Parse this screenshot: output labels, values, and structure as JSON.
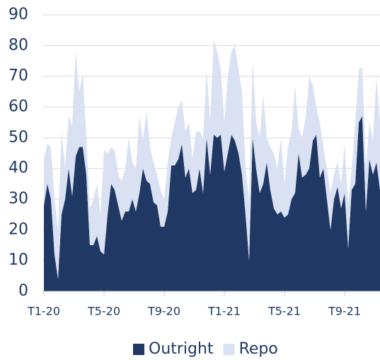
{
  "chart_data": {
    "type": "stacked_area",
    "categories": [
      "T1-20",
      null,
      null,
      null,
      null,
      null,
      null,
      null,
      null,
      null,
      null,
      null,
      null,
      null,
      null,
      null,
      null,
      "T5-20",
      null,
      null,
      null,
      null,
      null,
      null,
      null,
      null,
      null,
      null,
      null,
      null,
      null,
      null,
      null,
      null,
      "T9-20",
      null,
      null,
      null,
      null,
      null,
      null,
      null,
      null,
      null,
      null,
      null,
      null,
      null,
      null,
      null,
      null,
      "T1-21",
      null,
      null,
      null,
      null,
      null,
      null,
      null,
      null,
      null,
      null,
      null,
      null,
      null,
      null,
      null,
      null,
      "T5-21",
      null,
      null,
      null,
      null,
      null,
      null,
      null,
      null,
      null,
      null,
      null,
      null,
      null,
      null,
      null,
      null,
      "T9-21",
      null,
      null,
      null,
      null,
      null,
      null,
      null,
      null,
      null,
      null
    ],
    "series": [
      {
        "name": "Outright",
        "color": "#203864",
        "values": [
          28,
          35,
          30,
          12,
          4,
          25,
          30,
          40,
          31,
          44,
          47,
          47,
          38,
          15,
          15,
          18,
          13,
          12,
          25,
          35,
          33,
          28,
          23,
          26,
          26,
          30,
          26,
          32,
          40,
          36,
          35,
          29,
          28,
          21,
          21,
          26,
          41,
          41,
          43,
          48,
          37,
          40,
          32,
          33,
          40,
          32,
          50,
          38,
          51,
          50,
          51,
          39,
          45,
          51,
          49,
          45,
          38,
          25,
          10,
          50,
          40,
          32,
          35,
          42,
          33,
          27,
          25,
          26,
          24,
          25,
          30,
          32,
          45,
          37,
          38,
          40,
          49,
          51,
          37,
          40,
          30,
          20,
          30,
          34,
          27,
          32,
          14,
          33,
          35,
          55,
          57,
          26,
          43,
          38,
          42,
          33
        ]
      },
      {
        "name": "Repo",
        "color": "#d9e1f2",
        "values": [
          15,
          13,
          17,
          18,
          16,
          27,
          10,
          17,
          23,
          34,
          18,
          24,
          12,
          12,
          15,
          17,
          12,
          34,
          20,
          12,
          13,
          10,
          13,
          14,
          24,
          12,
          14,
          25,
          9,
          23,
          12,
          13,
          10,
          12,
          9,
          16,
          9,
          14,
          17,
          14,
          15,
          15,
          11,
          19,
          12,
          18,
          22,
          17,
          31,
          28,
          21,
          16,
          25,
          27,
          31,
          27,
          27,
          15,
          20,
          25,
          15,
          18,
          29,
          8,
          14,
          18,
          15,
          24,
          11,
          22,
          22,
          35,
          8,
          13,
          19,
          30,
          18,
          9,
          18,
          7,
          10,
          12,
          8,
          8,
          8,
          16,
          14,
          7,
          20,
          17,
          16,
          14,
          12,
          11,
          28,
          22
        ]
      }
    ],
    "ylim": [
      0,
      90
    ],
    "yticks": [
      0,
      10,
      20,
      30,
      40,
      50,
      60,
      70,
      80,
      90
    ],
    "grid": true,
    "legend": "bottom"
  }
}
